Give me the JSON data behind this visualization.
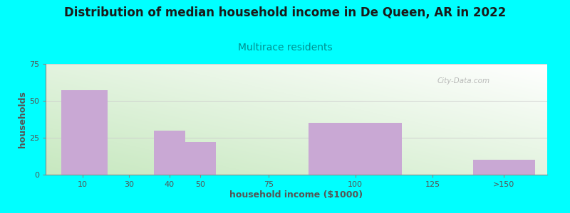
{
  "title": "Distribution of median household income in De Queen, AR in 2022",
  "subtitle": "Multirace residents",
  "xlabel": "household income ($1000)",
  "ylabel": "households",
  "bar_labels": [
    "10",
    "30",
    "40",
    "50",
    "75",
    "100",
    "125",
    ">150"
  ],
  "bar_values": [
    57,
    0,
    30,
    22,
    0,
    35,
    0,
    10
  ],
  "bar_left_edges": [
    5,
    20,
    35,
    45,
    60,
    85,
    115,
    138
  ],
  "bar_right_edges": [
    20,
    35,
    45,
    55,
    85,
    115,
    135,
    158
  ],
  "bar_tick_positions": [
    12,
    27,
    40,
    50,
    72,
    100,
    125,
    148
  ],
  "bar_color": "#c9a8d4",
  "ylim": [
    0,
    75
  ],
  "xlim": [
    0,
    162
  ],
  "yticks": [
    0,
    25,
    50,
    75
  ],
  "background_color": "#00ffff",
  "plot_bg_top_right": "#ffffff",
  "plot_bg_bottom_left": "#c8e6c0",
  "watermark": "City-Data.com",
  "title_fontsize": 12,
  "subtitle_fontsize": 10,
  "subtitle_color": "#009090",
  "axis_label_fontsize": 9,
  "tick_label_fontsize": 8,
  "grid_color": "#cccccc",
  "tick_color": "#555555"
}
